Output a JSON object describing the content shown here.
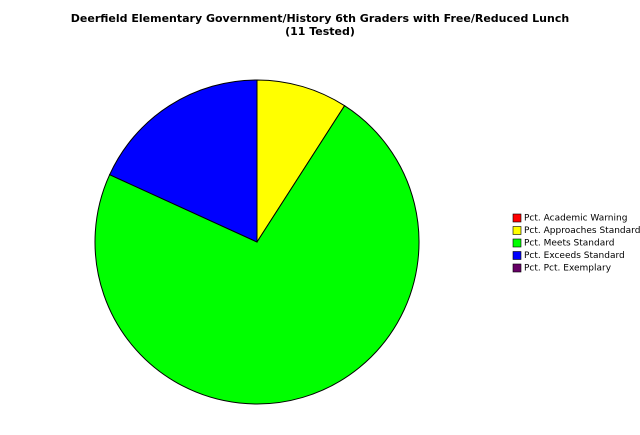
{
  "chart_data": {
    "type": "pie",
    "title": "Deerfield Elementary Government/History 6th Graders with Free/Reduced Lunch",
    "subtitle": "(11 Tested)",
    "categories": [
      "Pct. Academic Warning",
      "Pct. Approaches Standard",
      "Pct. Meets Standard",
      "Pct. Exceeds Standard",
      "Pct. Pct. Exemplary"
    ],
    "values": [
      0,
      9.09,
      72.73,
      18.18,
      0
    ],
    "colors": [
      "#ff0000",
      "#ffff00",
      "#00ff00",
      "#0000ff",
      "#660066"
    ],
    "legend": "right"
  }
}
